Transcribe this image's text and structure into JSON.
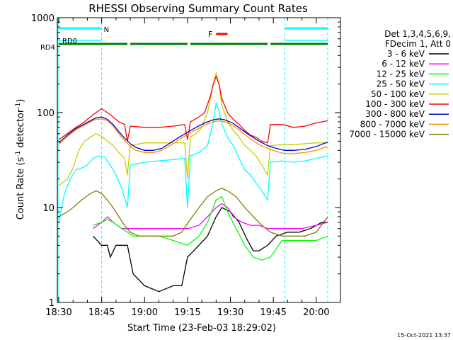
{
  "chart_data": {
    "type": "line",
    "title": "RHESSI Observing Summary Count Rates",
    "xlabel": "Start Time (23-Feb-03 18:29:02)",
    "ylabel": "Count Rate (s",
    "ylabel_sup": "-1",
    "ylabel_tail": " detector",
    "ylabel_sup2": "-1",
    "ylabel_close": ")",
    "yscale": "log",
    "ylim": [
      1,
      1000
    ],
    "xlim_minutes": [
      0,
      94
    ],
    "x_ticks": [
      "18:30",
      "18:45",
      "19:00",
      "19:15",
      "19:30",
      "19:45",
      "20:00"
    ],
    "y_ticks": [
      "1",
      "10",
      "100",
      "1000"
    ],
    "grid": false,
    "legend_position": "right",
    "legend_header": [
      "Det 1,3,4,5,6,9,",
      "FDecim 1, Att 0"
    ],
    "footer_timestamp": "15-Oct-2021 13:37",
    "flags": {
      "night_label": "N",
      "rd0_label": "RD0",
      "rd4_label": "RD4",
      "flare_label": "F",
      "night_color": "#00ffff",
      "rd0_color": "#00ffff",
      "rd4_color": "#008000",
      "flare_color": "#ff0000",
      "night_segments": [
        [
          0,
          15
        ],
        [
          79,
          94
        ]
      ],
      "rd0_segments": [
        [
          0,
          15
        ],
        [
          79,
          94
        ]
      ],
      "rd4_segments": [
        [
          0,
          24
        ],
        [
          25,
          45
        ],
        [
          46,
          73
        ],
        [
          74,
          94
        ]
      ],
      "flare_segment": [
        55,
        59
      ],
      "saa_lines": [
        15,
        79,
        94
      ]
    },
    "series": [
      {
        "name": "3 - 6 keV",
        "color": "#000000",
        "points": [
          [
            12,
            5
          ],
          [
            15,
            4
          ],
          [
            17,
            4
          ],
          [
            18,
            3
          ],
          [
            20,
            4
          ],
          [
            22,
            4
          ],
          [
            24,
            4
          ],
          [
            26,
            2
          ],
          [
            30,
            1.5
          ],
          [
            35,
            1.3
          ],
          [
            40,
            1.5
          ],
          [
            43,
            1.5
          ],
          [
            45,
            3
          ],
          [
            49,
            4
          ],
          [
            52,
            5
          ],
          [
            55,
            8
          ],
          [
            57,
            10
          ],
          [
            60,
            9
          ],
          [
            63,
            7
          ],
          [
            66,
            4.5
          ],
          [
            68,
            3.5
          ],
          [
            70,
            3.5
          ],
          [
            73,
            4
          ],
          [
            76,
            5
          ],
          [
            80,
            5.5
          ],
          [
            84,
            5.5
          ],
          [
            88,
            6
          ],
          [
            92,
            7
          ],
          [
            94,
            7
          ]
        ]
      },
      {
        "name": "6 - 12 keV",
        "color": "#ff00ff",
        "points": [
          [
            12,
            6
          ],
          [
            15,
            7
          ],
          [
            17,
            8
          ],
          [
            19,
            7
          ],
          [
            22,
            6
          ],
          [
            24,
            6
          ],
          [
            26,
            6
          ],
          [
            30,
            6
          ],
          [
            35,
            6
          ],
          [
            40,
            6
          ],
          [
            45,
            6
          ],
          [
            49,
            6.5
          ],
          [
            52,
            8
          ],
          [
            55,
            10
          ],
          [
            57,
            11
          ],
          [
            59,
            10
          ],
          [
            61,
            8
          ],
          [
            64,
            7
          ],
          [
            67,
            6.5
          ],
          [
            70,
            6.5
          ],
          [
            73,
            6
          ],
          [
            76,
            6
          ],
          [
            80,
            6
          ],
          [
            85,
            6
          ],
          [
            90,
            6.5
          ],
          [
            94,
            7
          ]
        ]
      },
      {
        "name": "12 - 25 keV",
        "color": "#00ff00",
        "points": [
          [
            12,
            6.5
          ],
          [
            15,
            7
          ],
          [
            17,
            7.5
          ],
          [
            19,
            7
          ],
          [
            22,
            6
          ],
          [
            24,
            5.5
          ],
          [
            26,
            5
          ],
          [
            30,
            5
          ],
          [
            35,
            5
          ],
          [
            40,
            4.5
          ],
          [
            45,
            4
          ],
          [
            49,
            5
          ],
          [
            52,
            7
          ],
          [
            55,
            12
          ],
          [
            57,
            13
          ],
          [
            59,
            9
          ],
          [
            62,
            6
          ],
          [
            65,
            4
          ],
          [
            68,
            3
          ],
          [
            71,
            2.8
          ],
          [
            74,
            3
          ],
          [
            78,
            4.5
          ],
          [
            82,
            4.5
          ],
          [
            86,
            4.5
          ],
          [
            90,
            4.5
          ],
          [
            94,
            5
          ]
        ]
      },
      {
        "name": "25 - 50 keV",
        "color": "#00ffff",
        "points": [
          [
            0,
            7
          ],
          [
            2,
            14
          ],
          [
            4,
            20
          ],
          [
            6,
            25
          ],
          [
            8,
            26
          ],
          [
            10,
            28
          ],
          [
            12,
            33
          ],
          [
            14,
            35
          ],
          [
            16,
            34
          ],
          [
            18,
            28
          ],
          [
            20,
            22
          ],
          [
            22,
            16
          ],
          [
            24,
            10
          ],
          [
            25,
            28
          ],
          [
            30,
            30
          ],
          [
            35,
            31
          ],
          [
            40,
            32
          ],
          [
            44,
            33
          ],
          [
            45,
            10
          ],
          [
            46,
            35
          ],
          [
            49,
            38
          ],
          [
            52,
            45
          ],
          [
            54,
            80
          ],
          [
            55,
            125
          ],
          [
            56,
            105
          ],
          [
            57,
            75
          ],
          [
            59,
            55
          ],
          [
            61,
            45
          ],
          [
            63,
            33
          ],
          [
            65,
            25
          ],
          [
            67,
            22
          ],
          [
            69,
            18
          ],
          [
            71,
            15
          ],
          [
            73,
            12
          ],
          [
            74,
            30
          ],
          [
            78,
            31
          ],
          [
            82,
            30
          ],
          [
            86,
            31
          ],
          [
            90,
            33
          ],
          [
            94,
            35
          ]
        ]
      },
      {
        "name": "50 - 100 keV",
        "color": "#cccc00",
        "points": [
          [
            0,
            17
          ],
          [
            3,
            20
          ],
          [
            5,
            26
          ],
          [
            7,
            40
          ],
          [
            9,
            50
          ],
          [
            11,
            55
          ],
          [
            13,
            60
          ],
          [
            15,
            56
          ],
          [
            17,
            50
          ],
          [
            19,
            45
          ],
          [
            21,
            38
          ],
          [
            23,
            33
          ],
          [
            24,
            22
          ],
          [
            25,
            45
          ],
          [
            30,
            48
          ],
          [
            35,
            48
          ],
          [
            40,
            48
          ],
          [
            44,
            48
          ],
          [
            45,
            20
          ],
          [
            46,
            55
          ],
          [
            48,
            60
          ],
          [
            50,
            70
          ],
          [
            52,
            100
          ],
          [
            54,
            200
          ],
          [
            55,
            260
          ],
          [
            56,
            200
          ],
          [
            57,
            120
          ],
          [
            59,
            80
          ],
          [
            61,
            65
          ],
          [
            63,
            55
          ],
          [
            65,
            45
          ],
          [
            67,
            40
          ],
          [
            69,
            35
          ],
          [
            71,
            28
          ],
          [
            73,
            22
          ],
          [
            74,
            45
          ],
          [
            78,
            46
          ],
          [
            82,
            46
          ],
          [
            86,
            47
          ],
          [
            90,
            48
          ],
          [
            94,
            48
          ]
        ]
      },
      {
        "name": "100 - 300 keV",
        "color": "#ff0000",
        "points": [
          [
            0,
            52
          ],
          [
            3,
            60
          ],
          [
            6,
            70
          ],
          [
            9,
            80
          ],
          [
            11,
            90
          ],
          [
            13,
            100
          ],
          [
            15,
            110
          ],
          [
            17,
            100
          ],
          [
            19,
            90
          ],
          [
            21,
            80
          ],
          [
            23,
            75
          ],
          [
            24,
            50
          ],
          [
            25,
            72
          ],
          [
            30,
            70
          ],
          [
            35,
            70
          ],
          [
            40,
            72
          ],
          [
            44,
            75
          ],
          [
            45,
            52
          ],
          [
            46,
            80
          ],
          [
            49,
            90
          ],
          [
            51,
            100
          ],
          [
            53,
            150
          ],
          [
            54,
            200
          ],
          [
            55,
            240
          ],
          [
            56,
            200
          ],
          [
            57,
            140
          ],
          [
            59,
            100
          ],
          [
            61,
            85
          ],
          [
            63,
            75
          ],
          [
            65,
            65
          ],
          [
            67,
            58
          ],
          [
            69,
            55
          ],
          [
            71,
            50
          ],
          [
            73,
            48
          ],
          [
            74,
            75
          ],
          [
            78,
            75
          ],
          [
            82,
            70
          ],
          [
            86,
            72
          ],
          [
            90,
            78
          ],
          [
            94,
            82
          ]
        ]
      },
      {
        "name": "300 - 800 keV",
        "color": "#0000cc",
        "points": [
          [
            0,
            48
          ],
          [
            3,
            58
          ],
          [
            6,
            68
          ],
          [
            9,
            76
          ],
          [
            11,
            82
          ],
          [
            13,
            88
          ],
          [
            15,
            90
          ],
          [
            17,
            85
          ],
          [
            19,
            75
          ],
          [
            21,
            63
          ],
          [
            23,
            54
          ],
          [
            25,
            47
          ],
          [
            27,
            43
          ],
          [
            30,
            40
          ],
          [
            33,
            40
          ],
          [
            36,
            42
          ],
          [
            39,
            48
          ],
          [
            42,
            55
          ],
          [
            45,
            62
          ],
          [
            48,
            70
          ],
          [
            51,
            78
          ],
          [
            54,
            84
          ],
          [
            56,
            86
          ],
          [
            58,
            84
          ],
          [
            61,
            77
          ],
          [
            64,
            66
          ],
          [
            67,
            57
          ],
          [
            70,
            50
          ],
          [
            73,
            45
          ],
          [
            76,
            42
          ],
          [
            79,
            40
          ],
          [
            82,
            40
          ],
          [
            86,
            41
          ],
          [
            90,
            44
          ],
          [
            94,
            49
          ]
        ]
      },
      {
        "name": "800 - 7000 keV",
        "color": "#ff8c00",
        "points": [
          [
            0,
            46
          ],
          [
            3,
            56
          ],
          [
            6,
            66
          ],
          [
            9,
            74
          ],
          [
            11,
            80
          ],
          [
            13,
            85
          ],
          [
            15,
            86
          ],
          [
            17,
            82
          ],
          [
            19,
            72
          ],
          [
            21,
            60
          ],
          [
            23,
            51
          ],
          [
            25,
            44
          ],
          [
            27,
            40
          ],
          [
            30,
            38
          ],
          [
            33,
            38
          ],
          [
            36,
            40
          ],
          [
            39,
            45
          ],
          [
            42,
            52
          ],
          [
            45,
            59
          ],
          [
            48,
            66
          ],
          [
            51,
            74
          ],
          [
            54,
            80
          ],
          [
            56,
            82
          ],
          [
            58,
            80
          ],
          [
            61,
            73
          ],
          [
            64,
            62
          ],
          [
            67,
            53
          ],
          [
            70,
            46
          ],
          [
            73,
            42
          ],
          [
            76,
            39
          ],
          [
            79,
            37
          ],
          [
            82,
            37
          ],
          [
            86,
            38
          ],
          [
            90,
            40
          ],
          [
            94,
            44
          ]
        ]
      },
      {
        "name": "7000 - 15000 keV",
        "color": "#808000",
        "points": [
          [
            0,
            8
          ],
          [
            3,
            9
          ],
          [
            5,
            10
          ],
          [
            8,
            12
          ],
          [
            11,
            14
          ],
          [
            13,
            15
          ],
          [
            15,
            14
          ],
          [
            17,
            12
          ],
          [
            19,
            10
          ],
          [
            21,
            8
          ],
          [
            23,
            6.5
          ],
          [
            25,
            5.5
          ],
          [
            28,
            5
          ],
          [
            32,
            5
          ],
          [
            36,
            5
          ],
          [
            40,
            5
          ],
          [
            43,
            5.5
          ],
          [
            46,
            7.5
          ],
          [
            49,
            10
          ],
          [
            52,
            13
          ],
          [
            55,
            15
          ],
          [
            57,
            16
          ],
          [
            59,
            15
          ],
          [
            62,
            13
          ],
          [
            65,
            10
          ],
          [
            68,
            8
          ],
          [
            71,
            6.5
          ],
          [
            74,
            5.5
          ],
          [
            78,
            5
          ],
          [
            82,
            5
          ],
          [
            86,
            5
          ],
          [
            90,
            5.5
          ],
          [
            94,
            8
          ]
        ]
      }
    ]
  }
}
